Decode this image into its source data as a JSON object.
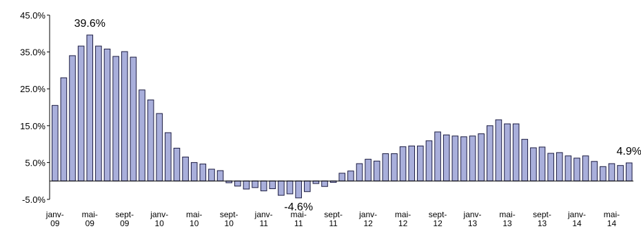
{
  "chart_data": {
    "type": "bar",
    "title": "",
    "xlabel": "",
    "ylabel": "",
    "ylim": [
      -5.0,
      45.0
    ],
    "grid": false,
    "colors": {
      "bar_fill": "#A9AFDB",
      "bar_stroke": "#1A1A40"
    },
    "y_ticks": [
      "45.0%",
      "35.0%",
      "25.0%",
      "15.0%",
      "5.0%",
      "-5.0%"
    ],
    "y_tick_values": [
      45,
      35,
      25,
      15,
      5,
      -5
    ],
    "x_tick_labels": [
      {
        "index": 0,
        "line1": "janv-",
        "line2": "09"
      },
      {
        "index": 4,
        "line1": "mai-",
        "line2": "09"
      },
      {
        "index": 8,
        "line1": "sept-",
        "line2": "09"
      },
      {
        "index": 12,
        "line1": "janv-",
        "line2": "10"
      },
      {
        "index": 16,
        "line1": "mai-",
        "line2": "10"
      },
      {
        "index": 20,
        "line1": "sept-",
        "line2": "10"
      },
      {
        "index": 24,
        "line1": "janv-",
        "line2": "11"
      },
      {
        "index": 28,
        "line1": "mai-",
        "line2": "11"
      },
      {
        "index": 32,
        "line1": "sept-",
        "line2": "11"
      },
      {
        "index": 36,
        "line1": "janv-",
        "line2": "12"
      },
      {
        "index": 40,
        "line1": "mai-",
        "line2": "12"
      },
      {
        "index": 44,
        "line1": "sept-",
        "line2": "12"
      },
      {
        "index": 48,
        "line1": "janv-",
        "line2": "13"
      },
      {
        "index": 52,
        "line1": "mai-",
        "line2": "13"
      },
      {
        "index": 56,
        "line1": "sept-",
        "line2": "13"
      },
      {
        "index": 60,
        "line1": "janv-",
        "line2": "14"
      },
      {
        "index": 64,
        "line1": "mai-",
        "line2": "14"
      }
    ],
    "values": [
      20.5,
      28.0,
      34.0,
      36.6,
      39.6,
      36.6,
      35.8,
      33.8,
      35.1,
      33.6,
      24.7,
      22.0,
      18.3,
      13.1,
      8.9,
      6.5,
      5.0,
      4.6,
      3.2,
      2.8,
      -0.5,
      -1.4,
      -2.2,
      -1.8,
      -2.7,
      -2.1,
      -3.9,
      -3.5,
      -4.6,
      -2.9,
      -0.7,
      -1.5,
      -0.4,
      2.1,
      2.7,
      4.7,
      5.9,
      5.4,
      7.4,
      7.4,
      9.3,
      9.5,
      9.5,
      10.9,
      13.3,
      12.5,
      12.2,
      12.0,
      12.2,
      12.8,
      15.0,
      16.6,
      15.5,
      15.5,
      11.3,
      9.0,
      9.2,
      7.5,
      7.7,
      6.8,
      6.2,
      6.8,
      5.3,
      3.9,
      4.7,
      4.2,
      4.9
    ],
    "annotations": [
      {
        "index": 4,
        "text": "39.6%",
        "position": "above"
      },
      {
        "index": 28,
        "text": "-4.6%",
        "position": "below"
      },
      {
        "index": 66,
        "text": "4.9%",
        "position": "above"
      }
    ]
  }
}
